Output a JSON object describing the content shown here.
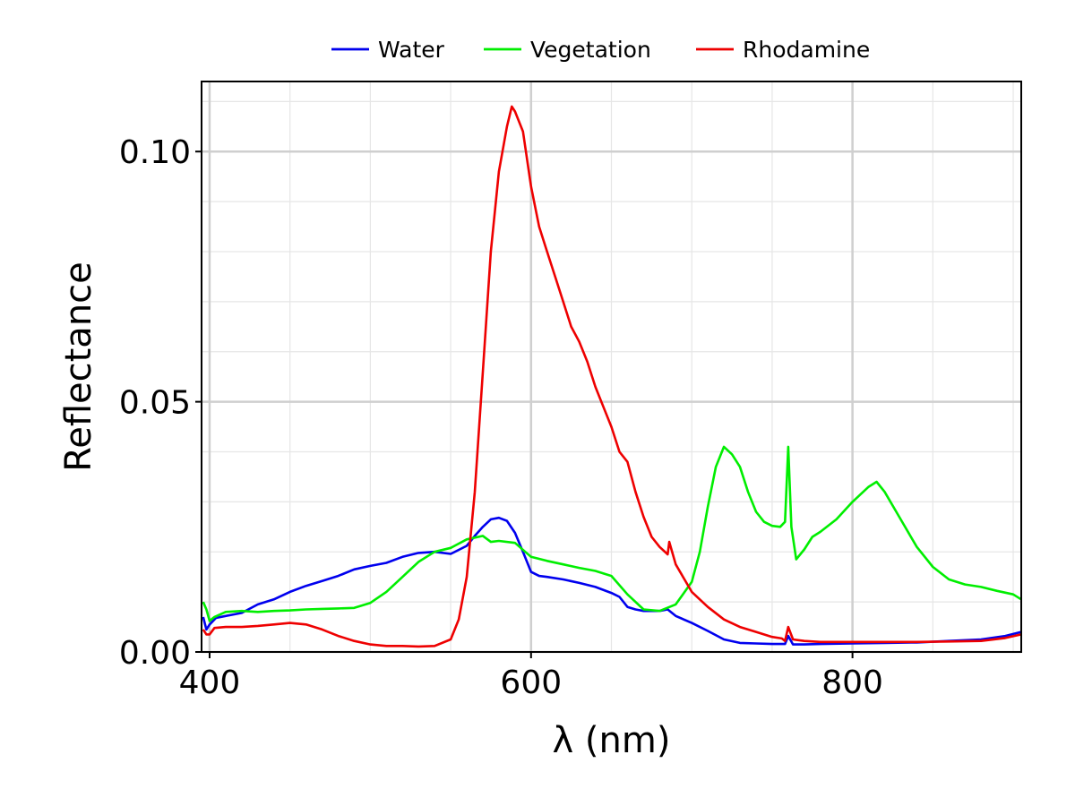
{
  "chart_data": {
    "type": "line",
    "title": "",
    "xlabel": "λ (nm)",
    "ylabel": "Reflectance",
    "xlim": [
      395,
      905
    ],
    "ylim": [
      0.0,
      0.114
    ],
    "xticks": [
      400,
      600,
      800
    ],
    "xtick_labels": [
      "400",
      "600",
      "800"
    ],
    "yticks": [
      0.0,
      0.05,
      0.1
    ],
    "ytick_labels": [
      "0.00",
      "0.05",
      "0.10"
    ],
    "grid": true,
    "legend_position": "top-center",
    "series": [
      {
        "name": "Water",
        "color": "#0000ee",
        "points": [
          [
            396,
            0.007
          ],
          [
            398,
            0.0045
          ],
          [
            400,
            0.0055
          ],
          [
            404,
            0.0068
          ],
          [
            410,
            0.0072
          ],
          [
            420,
            0.0078
          ],
          [
            430,
            0.0095
          ],
          [
            440,
            0.0105
          ],
          [
            450,
            0.012
          ],
          [
            460,
            0.0132
          ],
          [
            470,
            0.0142
          ],
          [
            480,
            0.0152
          ],
          [
            490,
            0.0165
          ],
          [
            500,
            0.0172
          ],
          [
            510,
            0.0178
          ],
          [
            520,
            0.019
          ],
          [
            530,
            0.0198
          ],
          [
            540,
            0.02
          ],
          [
            550,
            0.0196
          ],
          [
            560,
            0.0212
          ],
          [
            565,
            0.0232
          ],
          [
            570,
            0.025
          ],
          [
            575,
            0.0265
          ],
          [
            580,
            0.0268
          ],
          [
            585,
            0.0262
          ],
          [
            590,
            0.0238
          ],
          [
            595,
            0.02
          ],
          [
            600,
            0.016
          ],
          [
            605,
            0.0152
          ],
          [
            610,
            0.015
          ],
          [
            620,
            0.0145
          ],
          [
            630,
            0.0138
          ],
          [
            640,
            0.013
          ],
          [
            650,
            0.0118
          ],
          [
            655,
            0.011
          ],
          [
            660,
            0.009
          ],
          [
            665,
            0.0085
          ],
          [
            670,
            0.0082
          ],
          [
            680,
            0.0082
          ],
          [
            685,
            0.0085
          ],
          [
            690,
            0.0072
          ],
          [
            700,
            0.0058
          ],
          [
            710,
            0.0042
          ],
          [
            720,
            0.0025
          ],
          [
            730,
            0.0018
          ],
          [
            740,
            0.0017
          ],
          [
            750,
            0.0016
          ],
          [
            758,
            0.0016
          ],
          [
            760,
            0.0032
          ],
          [
            763,
            0.0015
          ],
          [
            770,
            0.0015
          ],
          [
            780,
            0.0016
          ],
          [
            800,
            0.0017
          ],
          [
            820,
            0.0018
          ],
          [
            840,
            0.0019
          ],
          [
            860,
            0.0022
          ],
          [
            880,
            0.0025
          ],
          [
            895,
            0.0032
          ],
          [
            905,
            0.004
          ]
        ]
      },
      {
        "name": "Vegetation",
        "color": "#00ee00",
        "points": [
          [
            396,
            0.01
          ],
          [
            398,
            0.0085
          ],
          [
            400,
            0.0062
          ],
          [
            403,
            0.007
          ],
          [
            410,
            0.008
          ],
          [
            420,
            0.0082
          ],
          [
            430,
            0.008
          ],
          [
            440,
            0.0082
          ],
          [
            450,
            0.0083
          ],
          [
            460,
            0.0085
          ],
          [
            470,
            0.0086
          ],
          [
            480,
            0.0087
          ],
          [
            490,
            0.0088
          ],
          [
            500,
            0.0098
          ],
          [
            510,
            0.012
          ],
          [
            520,
            0.015
          ],
          [
            530,
            0.018
          ],
          [
            540,
            0.02
          ],
          [
            550,
            0.0208
          ],
          [
            560,
            0.0225
          ],
          [
            570,
            0.0232
          ],
          [
            575,
            0.022
          ],
          [
            580,
            0.0222
          ],
          [
            590,
            0.0218
          ],
          [
            600,
            0.019
          ],
          [
            610,
            0.0182
          ],
          [
            620,
            0.0175
          ],
          [
            630,
            0.0168
          ],
          [
            640,
            0.0162
          ],
          [
            650,
            0.0152
          ],
          [
            660,
            0.0115
          ],
          [
            670,
            0.0085
          ],
          [
            680,
            0.0082
          ],
          [
            690,
            0.0095
          ],
          [
            700,
            0.014
          ],
          [
            705,
            0.02
          ],
          [
            710,
            0.029
          ],
          [
            715,
            0.037
          ],
          [
            720,
            0.041
          ],
          [
            725,
            0.0395
          ],
          [
            730,
            0.037
          ],
          [
            735,
            0.032
          ],
          [
            740,
            0.028
          ],
          [
            745,
            0.026
          ],
          [
            750,
            0.0252
          ],
          [
            755,
            0.025
          ],
          [
            758,
            0.026
          ],
          [
            760,
            0.041
          ],
          [
            762,
            0.025
          ],
          [
            765,
            0.0185
          ],
          [
            770,
            0.0205
          ],
          [
            775,
            0.023
          ],
          [
            780,
            0.024
          ],
          [
            790,
            0.0265
          ],
          [
            800,
            0.03
          ],
          [
            810,
            0.033
          ],
          [
            815,
            0.034
          ],
          [
            820,
            0.032
          ],
          [
            830,
            0.0265
          ],
          [
            840,
            0.021
          ],
          [
            850,
            0.017
          ],
          [
            860,
            0.0145
          ],
          [
            870,
            0.0135
          ],
          [
            880,
            0.013
          ],
          [
            890,
            0.0122
          ],
          [
            900,
            0.0115
          ],
          [
            905,
            0.0105
          ]
        ]
      },
      {
        "name": "Rhodamine",
        "color": "#ee0000",
        "points": [
          [
            396,
            0.0045
          ],
          [
            398,
            0.0035
          ],
          [
            400,
            0.0035
          ],
          [
            403,
            0.0048
          ],
          [
            410,
            0.005
          ],
          [
            420,
            0.005
          ],
          [
            430,
            0.0052
          ],
          [
            440,
            0.0055
          ],
          [
            450,
            0.0058
          ],
          [
            460,
            0.0055
          ],
          [
            470,
            0.0045
          ],
          [
            480,
            0.0032
          ],
          [
            490,
            0.0022
          ],
          [
            500,
            0.0015
          ],
          [
            510,
            0.0012
          ],
          [
            520,
            0.0012
          ],
          [
            530,
            0.0011
          ],
          [
            540,
            0.0012
          ],
          [
            550,
            0.0025
          ],
          [
            555,
            0.0065
          ],
          [
            560,
            0.015
          ],
          [
            565,
            0.032
          ],
          [
            570,
            0.056
          ],
          [
            575,
            0.08
          ],
          [
            580,
            0.096
          ],
          [
            585,
            0.105
          ],
          [
            588,
            0.109
          ],
          [
            590,
            0.108
          ],
          [
            595,
            0.104
          ],
          [
            600,
            0.093
          ],
          [
            605,
            0.085
          ],
          [
            610,
            0.08
          ],
          [
            615,
            0.075
          ],
          [
            620,
            0.07
          ],
          [
            625,
            0.065
          ],
          [
            630,
            0.062
          ],
          [
            635,
            0.058
          ],
          [
            640,
            0.053
          ],
          [
            645,
            0.049
          ],
          [
            650,
            0.045
          ],
          [
            655,
            0.04
          ],
          [
            660,
            0.038
          ],
          [
            665,
            0.032
          ],
          [
            670,
            0.027
          ],
          [
            675,
            0.023
          ],
          [
            680,
            0.021
          ],
          [
            685,
            0.0195
          ],
          [
            686,
            0.022
          ],
          [
            690,
            0.0175
          ],
          [
            700,
            0.012
          ],
          [
            710,
            0.009
          ],
          [
            720,
            0.0065
          ],
          [
            730,
            0.005
          ],
          [
            740,
            0.004
          ],
          [
            750,
            0.003
          ],
          [
            756,
            0.0027
          ],
          [
            758,
            0.0022
          ],
          [
            760,
            0.005
          ],
          [
            763,
            0.0025
          ],
          [
            770,
            0.0022
          ],
          [
            780,
            0.002
          ],
          [
            800,
            0.002
          ],
          [
            820,
            0.002
          ],
          [
            840,
            0.002
          ],
          [
            860,
            0.0021
          ],
          [
            880,
            0.0022
          ],
          [
            895,
            0.0028
          ],
          [
            905,
            0.0035
          ]
        ]
      }
    ]
  }
}
